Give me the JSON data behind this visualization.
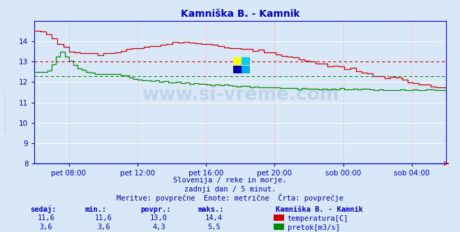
{
  "title": "Kamniška B. - Kamnik",
  "title_color": "#0000cc",
  "bg_color": "#d8e8f8",
  "plot_bg_color": "#d8e8f8",
  "grid_color": "#ffffff",
  "grid_pink": "#ffb0b0",
  "tick_color": "#0000cc",
  "watermark_color": "#c0d4e8",
  "watermark_text": "www.si-vreme.com",
  "subtitle1": "Slovenija / reke in morje.",
  "subtitle2": "zadnji dan / 5 minut.",
  "subtitle3": "Meritve: povprečne  Enote: metrične  Črta: povprečje",
  "footer_color": "#0000aa",
  "table_color": "#0000cc",
  "xlabel_color": "#0000aa",
  "temp_color": "#cc0000",
  "flow_color": "#008800",
  "border_color": "#0000cc",
  "arrow_color": "#cc0000",
  "y_min": 8,
  "y_max": 15,
  "ytick_labels": [
    8,
    9,
    10,
    11,
    12,
    13,
    14
  ],
  "avg_temp": 13.0,
  "avg_flow": 4.3,
  "temp_current": "11,6",
  "temp_min": "11,6",
  "temp_avg": "13,0",
  "temp_max": "14,4",
  "flow_current": "3,6",
  "flow_min": "3,6",
  "flow_avg": "4,3",
  "flow_max": "5,5",
  "xtick_labels": [
    "pet 08:00",
    "pet 12:00",
    "pet 16:00",
    "pet 20:00",
    "sob 00:00",
    "sob 04:00"
  ],
  "xtick_fracs": [
    0.0833,
    0.25,
    0.4167,
    0.5833,
    0.75,
    0.9167
  ]
}
